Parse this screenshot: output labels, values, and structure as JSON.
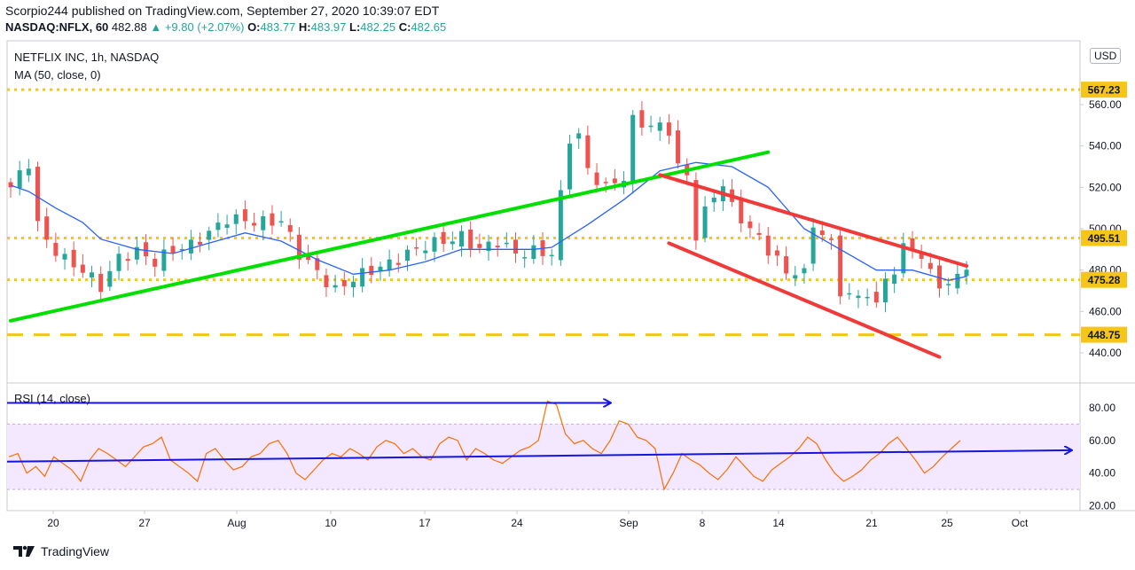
{
  "header": {
    "publisher": "Scorpio244 published on TradingView.com, September 27, 2020 10:39:07 EDT",
    "symbol": "NASDAQ:NFLX, 60",
    "last": "482.88",
    "change": "+9.80 (+2.07%)",
    "o_label": "O:",
    "o": "483.77",
    "h_label": "H:",
    "h": "483.97",
    "l_label": "L:",
    "l": "482.25",
    "c_label": "C:",
    "c": "482.65"
  },
  "legend": {
    "title": "NETFLIX INC, 1h, NASDAQ",
    "ma": "MA (50, close, 0)",
    "rsi": "RSI (14, close)",
    "currency": "USD"
  },
  "footer": {
    "brand": "TradingView"
  },
  "colors": {
    "up": "#26a69a",
    "down": "#ef5350",
    "ma": "#2962ff",
    "support": "#00e000",
    "channel": "#f03a3a",
    "level": "#f5c518",
    "rsi_line": "#ff6d00",
    "rsi_band": "#f3e8ff",
    "blue_line": "#1515e0"
  },
  "chart_data": [
    {
      "type": "candlestick",
      "title": "NETFLIX INC, 1h, NASDAQ",
      "x_tick_labels": [
        "20",
        "27",
        "Aug",
        "10",
        "17",
        "24",
        "Sep",
        "8",
        "14",
        "21",
        "25",
        "Oct"
      ],
      "y_ticks": [
        440,
        460,
        480,
        500,
        520,
        540,
        560
      ],
      "ylim": [
        430,
        580
      ],
      "price_levels": [
        {
          "label": "567.23",
          "value": 567.23,
          "style": "dotted"
        },
        {
          "label": "495.51",
          "value": 495.51,
          "style": "dotted"
        },
        {
          "label": "475.28",
          "value": 475.28,
          "style": "dotted"
        },
        {
          "label": "448.75",
          "value": 448.75,
          "style": "dashed"
        }
      ],
      "last_close": 482.88,
      "close_path": [
        [
          0,
          520
        ],
        [
          2,
          532
        ],
        [
          3,
          502
        ],
        [
          4,
          494
        ],
        [
          6,
          485
        ],
        [
          8,
          480
        ],
        [
          10,
          472
        ],
        [
          12,
          486
        ],
        [
          14,
          489
        ],
        [
          16,
          484
        ],
        [
          18,
          490
        ],
        [
          20,
          492
        ],
        [
          22,
          498
        ],
        [
          24,
          505
        ],
        [
          26,
          504
        ],
        [
          28,
          503
        ],
        [
          30,
          504
        ],
        [
          32,
          488
        ],
        [
          34,
          479
        ],
        [
          36,
          470
        ],
        [
          38,
          476
        ],
        [
          40,
          480
        ],
        [
          42,
          483
        ],
        [
          44,
          488
        ],
        [
          46,
          492
        ],
        [
          48,
          494
        ],
        [
          50,
          496
        ],
        [
          52,
          490
        ],
        [
          54,
          494
        ],
        [
          56,
          488
        ],
        [
          58,
          489
        ],
        [
          60,
          488
        ],
        [
          61,
          516
        ],
        [
          62,
          544
        ],
        [
          63,
          545
        ],
        [
          64,
          528
        ],
        [
          66,
          520
        ],
        [
          68,
          525
        ],
        [
          69,
          552
        ],
        [
          71,
          550
        ],
        [
          73,
          548
        ],
        [
          74,
          530
        ],
        [
          75,
          525
        ],
        [
          76,
          497
        ],
        [
          77,
          508
        ],
        [
          78,
          516
        ],
        [
          79,
          522
        ],
        [
          80,
          510
        ],
        [
          82,
          500
        ],
        [
          84,
          490
        ],
        [
          85,
          485
        ],
        [
          86,
          478
        ],
        [
          87,
          480
        ],
        [
          88,
          478
        ],
        [
          89,
          502
        ],
        [
          90,
          498
        ],
        [
          91,
          492
        ],
        [
          92,
          470
        ],
        [
          94,
          466
        ],
        [
          95,
          470
        ],
        [
          96,
          462
        ],
        [
          97,
          476
        ],
        [
          98,
          480
        ],
        [
          99,
          490
        ],
        [
          100,
          492
        ],
        [
          101,
          486
        ],
        [
          102,
          478
        ],
        [
          103,
          474
        ],
        [
          104,
          472
        ],
        [
          105,
          477
        ],
        [
          106,
          483
        ]
      ],
      "candle_count": 107,
      "moving_average": {
        "name": "MA (50, close, 0)",
        "points": [
          [
            0,
            521
          ],
          [
            2,
            518
          ],
          [
            5,
            510
          ],
          [
            8,
            503
          ],
          [
            10,
            495
          ],
          [
            14,
            490
          ],
          [
            18,
            488
          ],
          [
            22,
            493
          ],
          [
            26,
            498
          ],
          [
            30,
            494
          ],
          [
            34,
            485
          ],
          [
            38,
            478
          ],
          [
            42,
            480
          ],
          [
            46,
            484
          ],
          [
            50,
            490
          ],
          [
            54,
            490
          ],
          [
            58,
            490
          ],
          [
            60,
            491
          ],
          [
            64,
            502
          ],
          [
            68,
            514
          ],
          [
            72,
            528
          ],
          [
            76,
            532
          ],
          [
            80,
            530
          ],
          [
            84,
            520
          ],
          [
            88,
            500
          ],
          [
            92,
            490
          ],
          [
            96,
            480
          ],
          [
            100,
            480
          ],
          [
            104,
            475
          ],
          [
            106,
            477
          ]
        ]
      },
      "trendlines": [
        {
          "name": "support",
          "points": [
            [
              0,
              455.5
            ],
            [
              84,
              537
            ]
          ]
        },
        {
          "name": "channel-upper",
          "points": [
            [
              72,
              526
            ],
            [
              106,
              482
            ]
          ]
        },
        {
          "name": "channel-lower",
          "points": [
            [
              73,
              493
            ],
            [
              103,
              438
            ]
          ]
        }
      ]
    },
    {
      "type": "line",
      "title": "RSI (14, close)",
      "y_ticks": [
        20,
        40,
        60,
        80
      ],
      "ylim": [
        15,
        92
      ],
      "band": [
        30,
        70
      ],
      "values": [
        50,
        52,
        40,
        44,
        38,
        50,
        46,
        42,
        35,
        48,
        55,
        52,
        48,
        44,
        50,
        56,
        58,
        62,
        48,
        44,
        40,
        35,
        52,
        55,
        48,
        42,
        44,
        50,
        52,
        58,
        60,
        52,
        40,
        36,
        42,
        48,
        52,
        50,
        55,
        52,
        48,
        56,
        60,
        58,
        52,
        55,
        50,
        48,
        58,
        62,
        60,
        48,
        55,
        52,
        48,
        46,
        50,
        54,
        56,
        60,
        84,
        82,
        64,
        58,
        60,
        55,
        52,
        60,
        72,
        70,
        62,
        60,
        55,
        30,
        40,
        52,
        48,
        45,
        40,
        36,
        42,
        50,
        44,
        38,
        35,
        42,
        46,
        50,
        55,
        62,
        58,
        48,
        40,
        35,
        38,
        42,
        48,
        52,
        58,
        62,
        55,
        48,
        40,
        44,
        50,
        55,
        60
      ],
      "trendlines": [
        {
          "name": "rsi-upper-arrow",
          "points": [
            [
              0,
              83
            ],
            [
              68,
              83
            ]
          ]
        },
        {
          "name": "rsi-lower-line",
          "points": [
            [
              0,
              47
            ],
            [
              120,
              54
            ]
          ]
        }
      ]
    }
  ]
}
